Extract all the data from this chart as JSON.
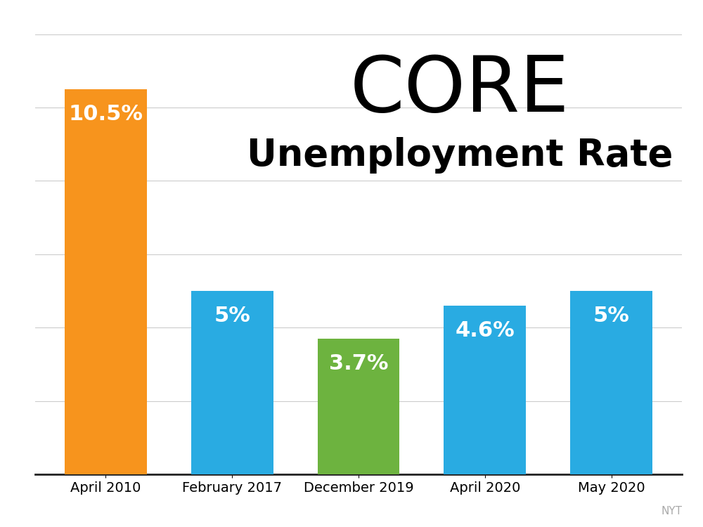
{
  "categories": [
    "April 2010",
    "February 2017",
    "December 2019",
    "April 2020",
    "May 2020"
  ],
  "values": [
    10.5,
    5.0,
    3.7,
    4.6,
    5.0
  ],
  "labels": [
    "10.5%",
    "5%",
    "3.7%",
    "4.6%",
    "5%"
  ],
  "bar_colors": [
    "#F7941D",
    "#29ABE2",
    "#6DB33F",
    "#29ABE2",
    "#29ABE2"
  ],
  "title_line1": "CORE",
  "title_line2": "Unemployment Rate",
  "title_fontsize": 80,
  "subtitle_fontsize": 38,
  "label_fontsize": 22,
  "xlabel_fontsize": 14,
  "background_color": "#FFFFFF",
  "text_color": "#000000",
  "bar_label_color": "#FFFFFF",
  "grid_color": "#CCCCCC",
  "watermark": "NYT",
  "ylim": [
    0,
    12.5
  ]
}
